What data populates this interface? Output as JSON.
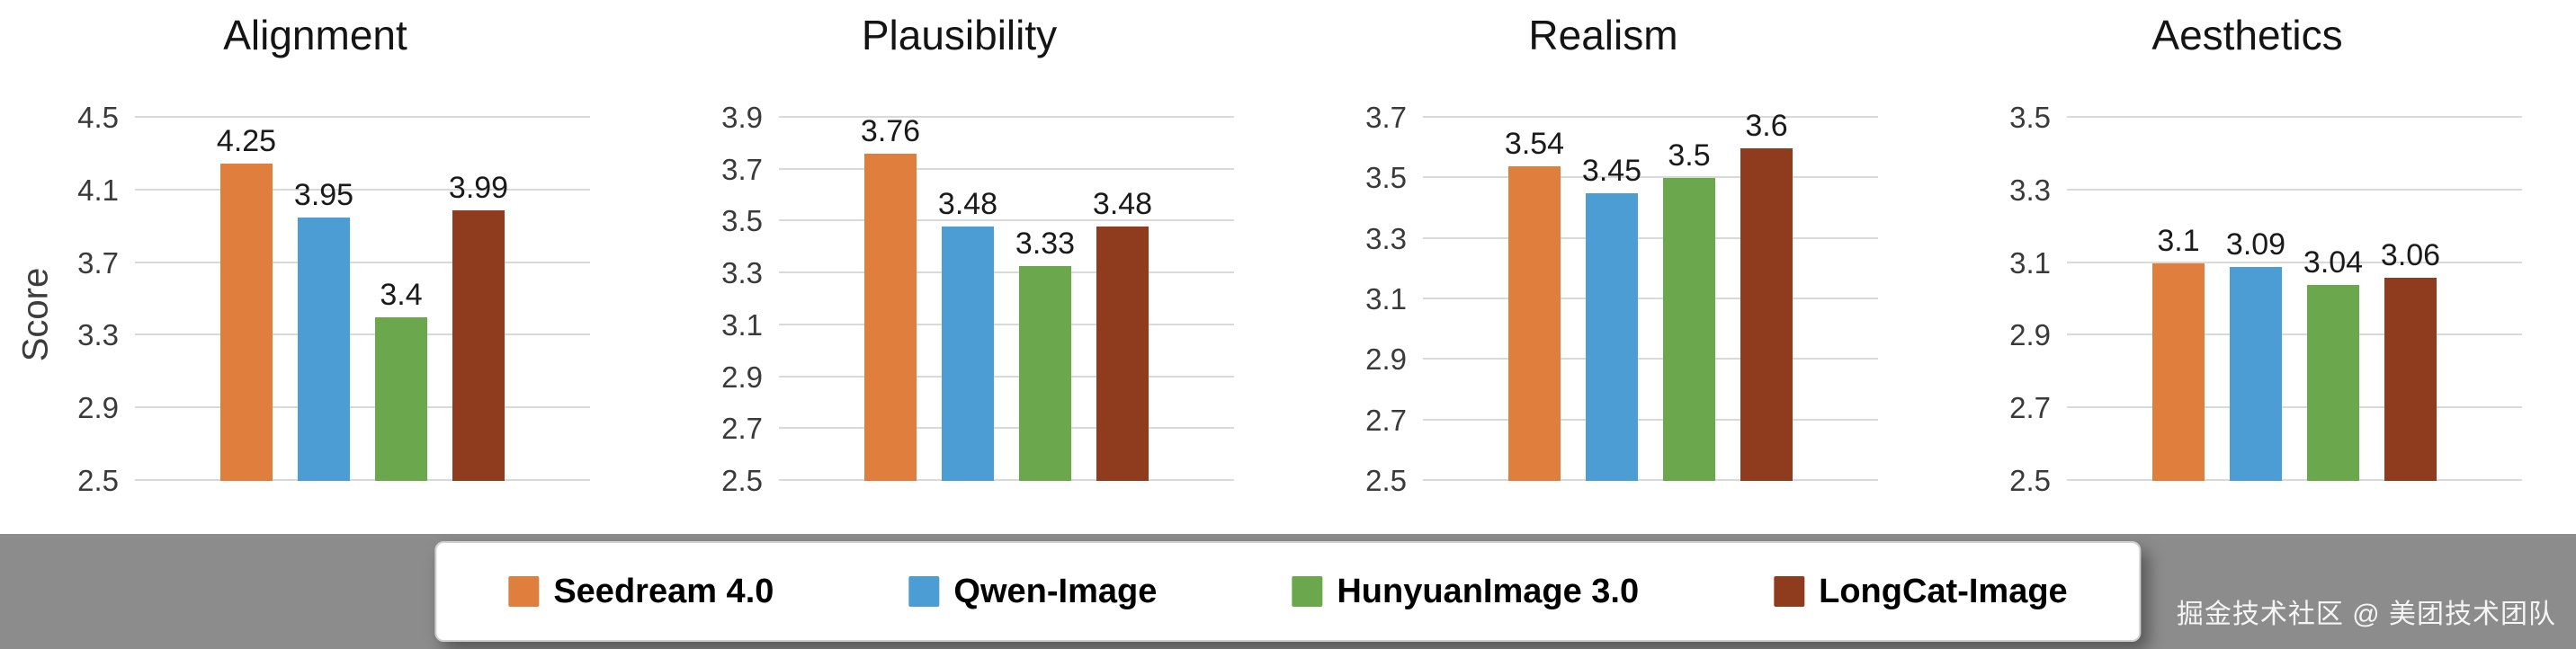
{
  "page": {
    "background": "#FFFFFF",
    "band_color": "#8C8C8C",
    "watermark": "掘金技术社区 @ 美团技术团队"
  },
  "axis": {
    "ylabel": "Score"
  },
  "legend": {
    "position": "bottom",
    "items": [
      {
        "label": "Seedream 4.0",
        "color": "#E07E3D"
      },
      {
        "label": "Qwen-Image",
        "color": "#4D9DD5"
      },
      {
        "label": "HunyuanImage 3.0",
        "color": "#6BA84D"
      },
      {
        "label": "LongCat-Image",
        "color": "#8F3C1E"
      }
    ]
  },
  "chart_data": [
    {
      "type": "bar",
      "title": "Alignment",
      "ylabel": "Score",
      "categories": [
        "Seedream 4.0",
        "Qwen-Image",
        "HunyuanImage 3.0",
        "LongCat-Image"
      ],
      "values": [
        4.25,
        3.95,
        3.4,
        3.99
      ],
      "ylim": [
        2.5,
        4.5
      ],
      "yticks": [
        2.5,
        2.9,
        3.3,
        3.7,
        4.1,
        4.5
      ],
      "grid": true,
      "legend_position": "bottom"
    },
    {
      "type": "bar",
      "title": "Plausibility",
      "ylabel": "",
      "categories": [
        "Seedream 4.0",
        "Qwen-Image",
        "HunyuanImage 3.0",
        "LongCat-Image"
      ],
      "values": [
        3.76,
        3.48,
        3.33,
        3.48
      ],
      "ylim": [
        2.5,
        3.9
      ],
      "yticks": [
        2.5,
        2.7,
        2.9,
        3.1,
        3.3,
        3.5,
        3.7,
        3.9
      ],
      "grid": true,
      "legend_position": "bottom"
    },
    {
      "type": "bar",
      "title": "Realism",
      "ylabel": "",
      "categories": [
        "Seedream 4.0",
        "Qwen-Image",
        "HunyuanImage 3.0",
        "LongCat-Image"
      ],
      "values": [
        3.54,
        3.45,
        3.5,
        3.6
      ],
      "ylim": [
        2.5,
        3.7
      ],
      "yticks": [
        2.5,
        2.7,
        2.9,
        3.1,
        3.3,
        3.5,
        3.7
      ],
      "grid": true,
      "legend_position": "bottom"
    },
    {
      "type": "bar",
      "title": "Aesthetics",
      "ylabel": "",
      "categories": [
        "Seedream 4.0",
        "Qwen-Image",
        "HunyuanImage 3.0",
        "LongCat-Image"
      ],
      "values": [
        3.1,
        3.09,
        3.04,
        3.06
      ],
      "ylim": [
        2.5,
        3.5
      ],
      "yticks": [
        2.5,
        2.7,
        2.9,
        3.1,
        3.3,
        3.5
      ],
      "grid": true,
      "legend_position": "bottom"
    }
  ]
}
